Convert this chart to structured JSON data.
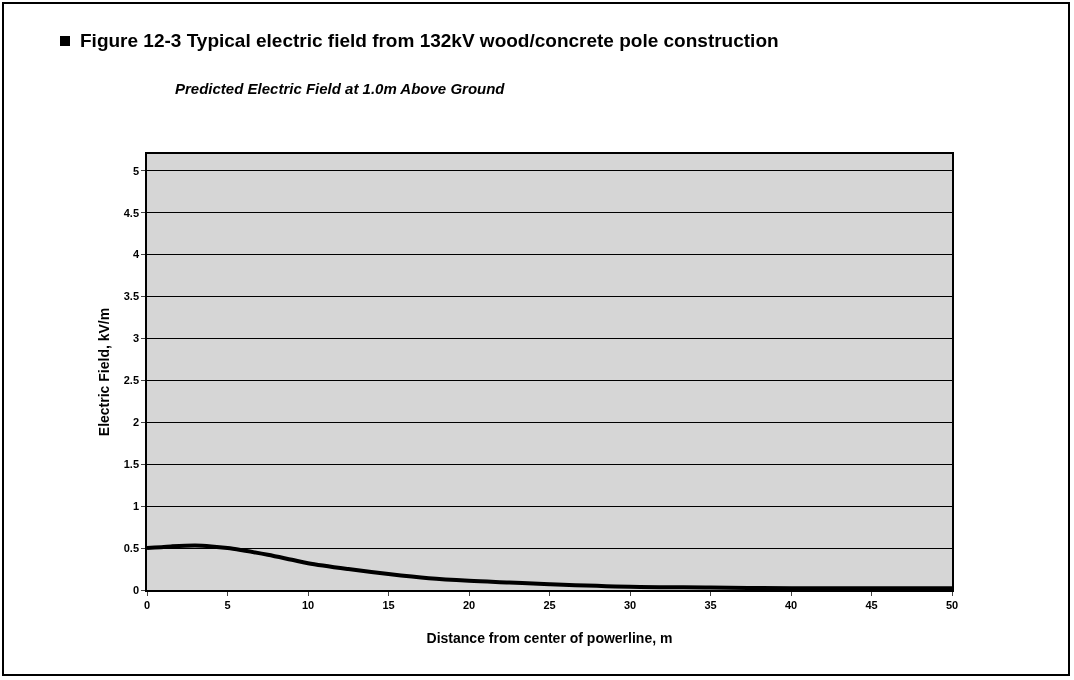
{
  "chart_data": {
    "type": "line",
    "title": "Figure 12-3 Typical electric field from 132kV wood/concrete pole construction",
    "subtitle": "Predicted Electric Field at 1.0m Above Ground",
    "xlabel": "Distance from center of powerline, m",
    "ylabel": "Electric Field, kV/m",
    "x": [
      0,
      1.5,
      3,
      4,
      5,
      6,
      7.5,
      9,
      10,
      12.5,
      15,
      17.5,
      20,
      22.5,
      25,
      30,
      35,
      40,
      45,
      50
    ],
    "series": [
      {
        "color": "#000000",
        "values": [
          0.5,
          0.52,
          0.53,
          0.52,
          0.5,
          0.47,
          0.42,
          0.36,
          0.32,
          0.25,
          0.19,
          0.14,
          0.11,
          0.09,
          0.07,
          0.04,
          0.03,
          0.02,
          0.02,
          0.02
        ]
      }
    ],
    "xlim": [
      0,
      50
    ],
    "xticks": [
      0,
      5,
      10,
      15,
      20,
      25,
      30,
      35,
      40,
      45,
      50
    ],
    "ylim": [
      0,
      5.2
    ],
    "yticks": [
      0,
      0.5,
      1,
      1.5,
      2,
      2.5,
      3,
      3.5,
      4,
      4.5,
      5
    ],
    "grid": "y",
    "marker": "none",
    "line_style": "solid"
  }
}
